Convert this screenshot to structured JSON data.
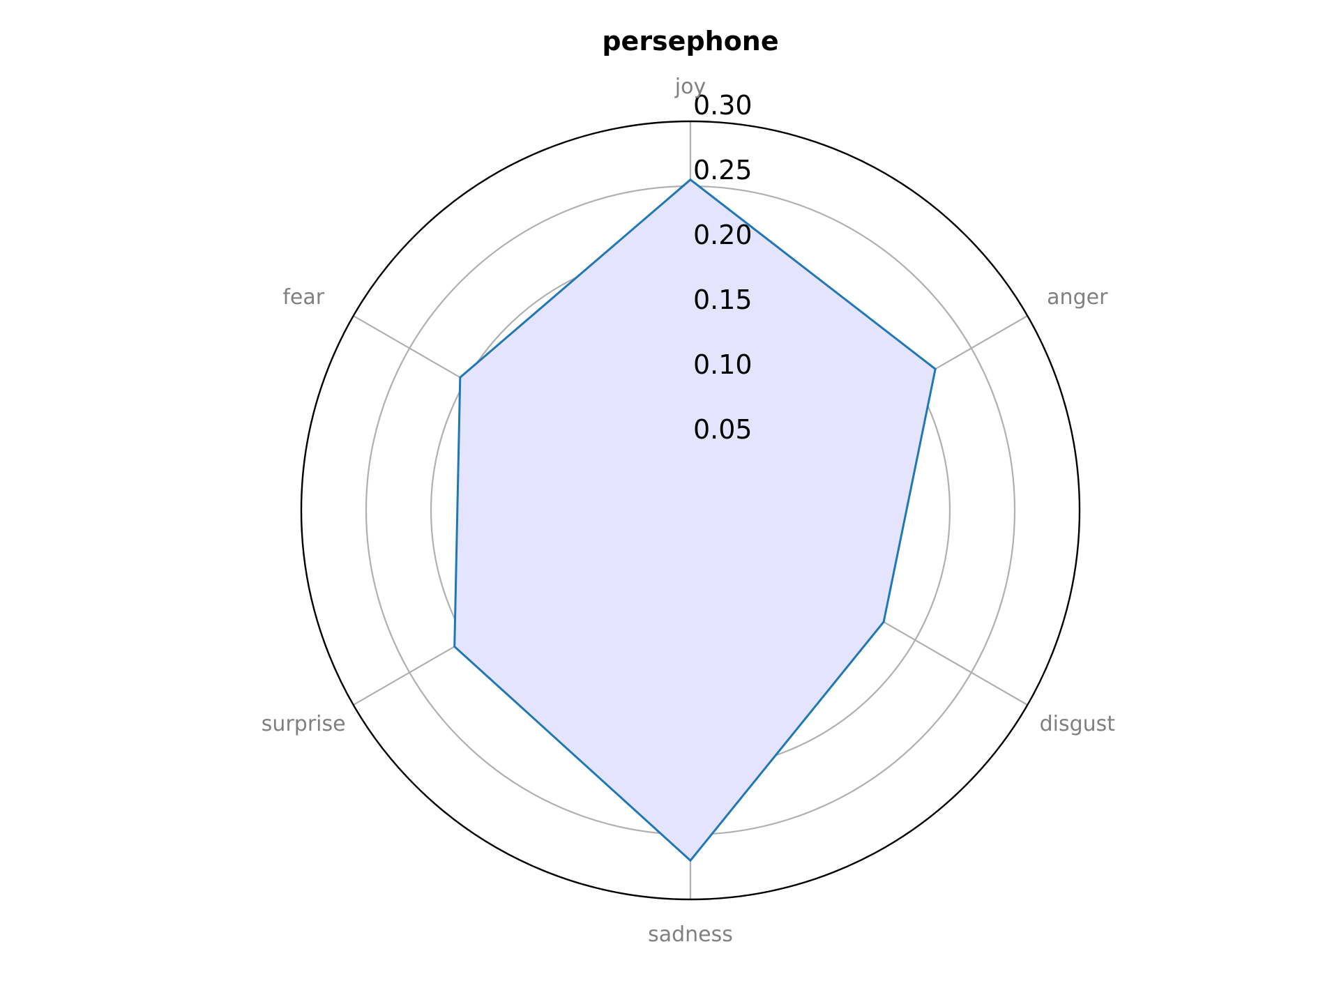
{
  "chart_data": {
    "type": "radar",
    "title": "persephone",
    "categories": [
      "joy",
      "anger",
      "disgust",
      "sadness",
      "surprise",
      "fear"
    ],
    "series": [
      {
        "values": [
          0.255,
          0.218,
          0.172,
          0.27,
          0.21,
          0.205
        ]
      }
    ],
    "rlim": [
      0,
      0.3
    ],
    "rticks": [
      0.05,
      0.1,
      0.15,
      0.2,
      0.25,
      0.3
    ],
    "rtick_labels": [
      "0.05",
      "0.10",
      "0.15",
      "0.20",
      "0.25",
      "0.30"
    ],
    "grid": true,
    "colors": {
      "line": "#1f77b4",
      "fill": "#e4e4ff",
      "grid": "#b0b0b0",
      "outer_ring": "#000000",
      "category_text": "#808080"
    }
  }
}
